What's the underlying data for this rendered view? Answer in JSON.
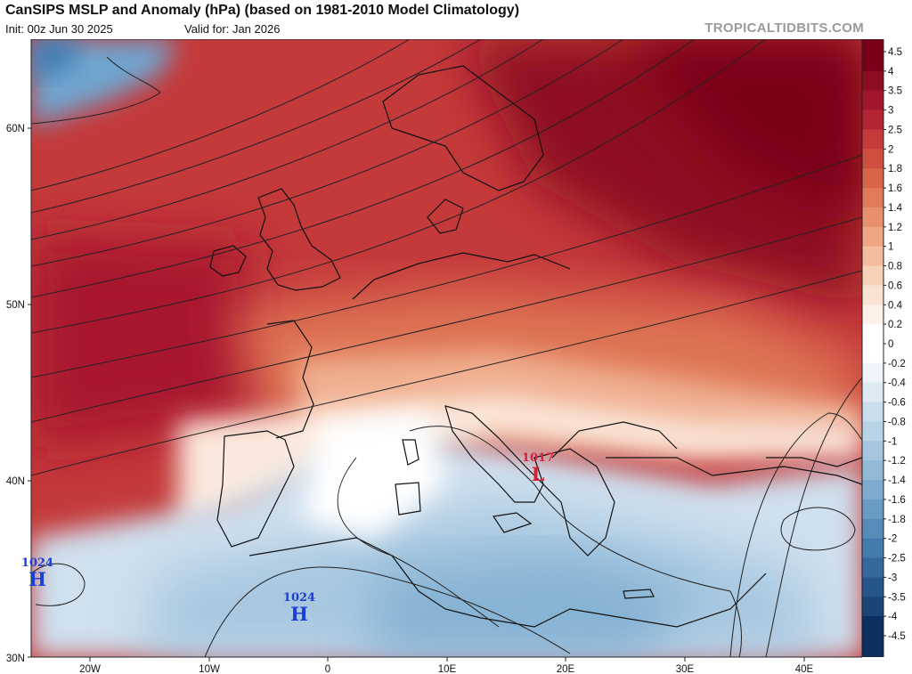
{
  "header": {
    "title": "CanSIPS MSLP and Anomaly (hPa) (based on 1981-2010 Model Climatology)",
    "init": "Init: 00z Jun 30 2025",
    "valid": "Valid for: Jan 2026",
    "brand": "TROPICALTIDBITS.COM"
  },
  "axes": {
    "lat_labels": [
      "60N",
      "50N",
      "40N",
      "30N"
    ],
    "lon_labels": [
      "20W",
      "10W",
      "0",
      "10E",
      "20E",
      "30E",
      "40E"
    ]
  },
  "colorbar": {
    "labels": [
      "4.5",
      "4",
      "3.5",
      "3",
      "2.5",
      "2",
      "1.8",
      "1.6",
      "1.4",
      "1.2",
      "1",
      "0.8",
      "0.6",
      "0.4",
      "0.2",
      "0",
      "-0.2",
      "-0.4",
      "-0.6",
      "-0.8",
      "-1",
      "-1.2",
      "-1.4",
      "-1.6",
      "-1.8",
      "-2",
      "-2.5",
      "-3",
      "-3.5",
      "-4",
      "-4.5"
    ],
    "colors": [
      "#7a0019",
      "#8d0e22",
      "#a0172b",
      "#b52434",
      "#c53a3a",
      "#cf5040",
      "#d8644a",
      "#e07a5a",
      "#e8906e",
      "#eea684",
      "#f3bc9e",
      "#f7d1b8",
      "#fae2d2",
      "#fdf0e8",
      "#ffffff",
      "#ffffff",
      "#eef4f9",
      "#dde9f3",
      "#cbdeec",
      "#b8d3e6",
      "#a5c6de",
      "#92b9d6",
      "#7eaacd",
      "#6a9bc3",
      "#578bb8",
      "#447aac",
      "#35689c",
      "#27558a",
      "#1a4376",
      "#0d2f5f"
    ]
  },
  "pressure_centers": [
    {
      "type": "H",
      "value": "1024",
      "color": "#1a3fd9"
    },
    {
      "type": "H",
      "value": "1024",
      "color": "#1a3fd9"
    },
    {
      "type": "L",
      "value": "1017",
      "color": "#d9203a"
    }
  ]
}
